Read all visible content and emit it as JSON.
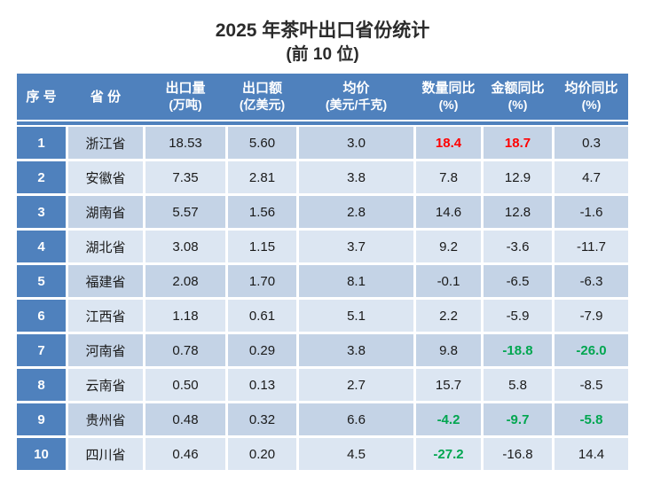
{
  "title": {
    "line1": "2025 年茶叶出口省份统计",
    "line2": "(前 10 位)"
  },
  "colors": {
    "header_bg": "#4f81bd",
    "rank_col_bg": "#4f81bd",
    "row_odd_bg": "#c4d3e6",
    "row_even_bg": "#dce6f2",
    "positive_highlight": "#ff0000",
    "negative_highlight": "#00a650",
    "header_text": "#ffffff",
    "body_text": "#1a1a1a"
  },
  "table": {
    "headers": [
      {
        "label": "序 号",
        "unit": ""
      },
      {
        "label": "省 份",
        "unit": ""
      },
      {
        "label": "出口量",
        "unit": "(万吨)"
      },
      {
        "label": "出口额",
        "unit": "(亿美元)"
      },
      {
        "label": "均价",
        "unit": "(美元/千克)"
      },
      {
        "label": "数量同比",
        "unit": "(%)"
      },
      {
        "label": "金额同比",
        "unit": "(%)"
      },
      {
        "label": "均价同比",
        "unit": "(%)"
      }
    ],
    "rows": [
      {
        "rank": "1",
        "province": "浙江省",
        "cells": [
          {
            "v": "18.53"
          },
          {
            "v": "5.60"
          },
          {
            "v": "3.0"
          },
          {
            "v": "18.4",
            "c": "red"
          },
          {
            "v": "18.7",
            "c": "red"
          },
          {
            "v": "0.3"
          }
        ]
      },
      {
        "rank": "2",
        "province": "安徽省",
        "cells": [
          {
            "v": "7.35"
          },
          {
            "v": "2.81"
          },
          {
            "v": "3.8"
          },
          {
            "v": "7.8"
          },
          {
            "v": "12.9"
          },
          {
            "v": "4.7"
          }
        ]
      },
      {
        "rank": "3",
        "province": "湖南省",
        "cells": [
          {
            "v": "5.57"
          },
          {
            "v": "1.56"
          },
          {
            "v": "2.8"
          },
          {
            "v": "14.6"
          },
          {
            "v": "12.8"
          },
          {
            "v": "-1.6"
          }
        ]
      },
      {
        "rank": "4",
        "province": "湖北省",
        "cells": [
          {
            "v": "3.08"
          },
          {
            "v": "1.15"
          },
          {
            "v": "3.7"
          },
          {
            "v": "9.2"
          },
          {
            "v": "-3.6"
          },
          {
            "v": "-11.7"
          }
        ]
      },
      {
        "rank": "5",
        "province": "福建省",
        "cells": [
          {
            "v": "2.08"
          },
          {
            "v": "1.70"
          },
          {
            "v": "8.1"
          },
          {
            "v": "-0.1"
          },
          {
            "v": "-6.5"
          },
          {
            "v": "-6.3"
          }
        ]
      },
      {
        "rank": "6",
        "province": "江西省",
        "cells": [
          {
            "v": "1.18"
          },
          {
            "v": "0.61"
          },
          {
            "v": "5.1"
          },
          {
            "v": "2.2"
          },
          {
            "v": "-5.9"
          },
          {
            "v": "-7.9"
          }
        ]
      },
      {
        "rank": "7",
        "province": "河南省",
        "cells": [
          {
            "v": "0.78"
          },
          {
            "v": "0.29"
          },
          {
            "v": "3.8"
          },
          {
            "v": "9.8"
          },
          {
            "v": "-18.8",
            "c": "green"
          },
          {
            "v": "-26.0",
            "c": "green"
          }
        ]
      },
      {
        "rank": "8",
        "province": "云南省",
        "cells": [
          {
            "v": "0.50"
          },
          {
            "v": "0.13"
          },
          {
            "v": "2.7"
          },
          {
            "v": "15.7"
          },
          {
            "v": "5.8"
          },
          {
            "v": "-8.5"
          }
        ]
      },
      {
        "rank": "9",
        "province": "贵州省",
        "cells": [
          {
            "v": "0.48"
          },
          {
            "v": "0.32"
          },
          {
            "v": "6.6"
          },
          {
            "v": "-4.2",
            "c": "green"
          },
          {
            "v": "-9.7",
            "c": "green"
          },
          {
            "v": "-5.8",
            "c": "green"
          }
        ]
      },
      {
        "rank": "10",
        "province": "四川省",
        "cells": [
          {
            "v": "0.46"
          },
          {
            "v": "0.20"
          },
          {
            "v": "4.5"
          },
          {
            "v": "-27.2",
            "c": "green"
          },
          {
            "v": "-16.8"
          },
          {
            "v": "14.4"
          }
        ]
      }
    ]
  },
  "chart_data": {
    "type": "table",
    "title": "2025 年茶叶出口省份统计 (前 10 位)",
    "columns": [
      "序号",
      "省份",
      "出口量(万吨)",
      "出口额(亿美元)",
      "均价(美元/千克)",
      "数量同比(%)",
      "金额同比(%)",
      "均价同比(%)"
    ],
    "rows": [
      [
        1,
        "浙江省",
        18.53,
        5.6,
        3.0,
        18.4,
        18.7,
        0.3
      ],
      [
        2,
        "安徽省",
        7.35,
        2.81,
        3.8,
        7.8,
        12.9,
        4.7
      ],
      [
        3,
        "湖南省",
        5.57,
        1.56,
        2.8,
        14.6,
        12.8,
        -1.6
      ],
      [
        4,
        "湖北省",
        3.08,
        1.15,
        3.7,
        9.2,
        -3.6,
        -11.7
      ],
      [
        5,
        "福建省",
        2.08,
        1.7,
        8.1,
        -0.1,
        -6.5,
        -6.3
      ],
      [
        6,
        "江西省",
        1.18,
        0.61,
        5.1,
        2.2,
        -5.9,
        -7.9
      ],
      [
        7,
        "河南省",
        0.78,
        0.29,
        3.8,
        9.8,
        -18.8,
        -26.0
      ],
      [
        8,
        "云南省",
        0.5,
        0.13,
        2.7,
        15.7,
        5.8,
        -8.5
      ],
      [
        9,
        "贵州省",
        0.48,
        0.32,
        6.6,
        -4.2,
        -9.7,
        -5.8
      ],
      [
        10,
        "四川省",
        0.46,
        0.2,
        4.5,
        -27.2,
        -16.8,
        14.4
      ]
    ],
    "highlight_rules": {
      "red_bold_cells": "row 浙江省: 数量同比 18.4, 金额同比 18.7",
      "green_bold_cells": "河南省: -18.8, -26.0; 贵州省: -4.2, -9.7, -5.8; 四川省: -27.2"
    }
  }
}
